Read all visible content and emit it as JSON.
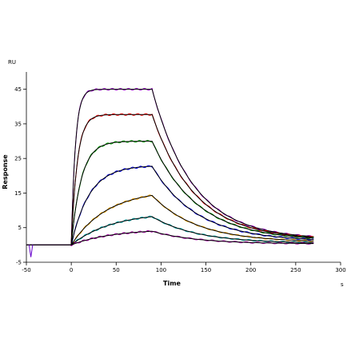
{
  "chart_data": {
    "type": "line",
    "title": "",
    "xlabel": "Time",
    "ylabel": "Response",
    "x_unit": "s",
    "y_unit": "RU",
    "xlim": [
      -50,
      300
    ],
    "ylim": [
      -5,
      50
    ],
    "xticks": [
      -50,
      0,
      50,
      100,
      150,
      200,
      250,
      300
    ],
    "yticks": [
      -5,
      5,
      15,
      25,
      35,
      45
    ],
    "grid": false,
    "legend": "none",
    "association_start": 0,
    "dissociation_start": 90,
    "end_time": 270,
    "baseline_start": -50,
    "series": [
      {
        "color": "#9900cc",
        "fit_color": "#000000",
        "plateau": 45.0,
        "ka": 0.22,
        "kd": 0.022,
        "tail": 1.6
      },
      {
        "color": "#ff0000",
        "fit_color": "#000000",
        "plateau": 37.7,
        "ka": 0.15,
        "kd": 0.021,
        "tail": 1.4
      },
      {
        "color": "#00aa00",
        "fit_color": "#000000",
        "plateau": 30.0,
        "ka": 0.09,
        "kd": 0.02,
        "tail": 1.2
      },
      {
        "color": "#0000ff",
        "fit_color": "#000000",
        "plateau": 23.0,
        "ka": 0.05,
        "kd": 0.02,
        "tail": 1.0
      },
      {
        "color": "#ffaa00",
        "fit_color": "#000000",
        "plateau": 16.0,
        "ka": 0.025,
        "kd": 0.02,
        "tail": 0.8
      },
      {
        "color": "#00aaaa",
        "fit_color": "#000000",
        "plateau": 9.5,
        "ka": 0.022,
        "kd": 0.02,
        "tail": 0.5
      },
      {
        "color": "#aa00aa",
        "fit_color": "#000000",
        "plateau": 4.6,
        "ka": 0.022,
        "kd": 0.02,
        "tail": 0.3
      }
    ]
  }
}
